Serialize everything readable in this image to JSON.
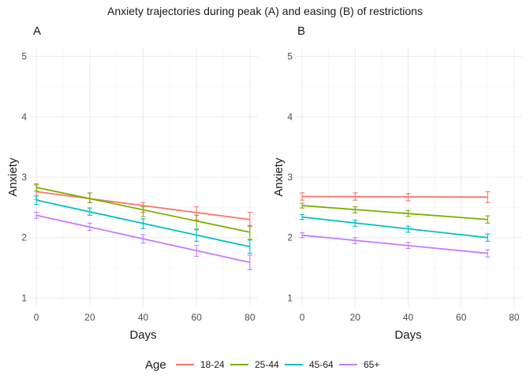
{
  "figure": {
    "title": "Anxiety trajectories during peak (A) and easing (B) of restrictions"
  },
  "legend": {
    "title": "Age",
    "position": "bottom",
    "items": [
      {
        "label": "18-24",
        "color": "#F8766D"
      },
      {
        "label": "25-44",
        "color": "#7CAE00"
      },
      {
        "label": "45-64",
        "color": "#00BFC4"
      },
      {
        "label": "65+",
        "color": "#C77CFF"
      }
    ]
  },
  "chart_data": [
    {
      "type": "line",
      "panel_label": "A",
      "xlabel": "Days",
      "ylabel": "Anxiety",
      "xlim": [
        -3,
        83
      ],
      "ylim": [
        0.85,
        5.15
      ],
      "x_ticks": [
        0,
        20,
        40,
        60,
        80
      ],
      "y_ticks": [
        1,
        2,
        3,
        4,
        5
      ],
      "grid": true,
      "series": [
        {
          "name": "18-24",
          "color": "#F8766D",
          "line": {
            "x": [
              0,
              80
            ],
            "y": [
              2.76,
              2.3
            ]
          },
          "points": [
            {
              "x": 0,
              "y": 2.75,
              "lo": 2.63,
              "hi": 2.87
            },
            {
              "x": 20,
              "y": 2.66,
              "lo": 2.58,
              "hi": 2.74
            },
            {
              "x": 40,
              "y": 2.5,
              "lo": 2.42,
              "hi": 2.58
            },
            {
              "x": 60,
              "y": 2.4,
              "lo": 2.29,
              "hi": 2.51
            },
            {
              "x": 80,
              "y": 2.3,
              "lo": 2.18,
              "hi": 2.42
            }
          ]
        },
        {
          "name": "25-44",
          "color": "#7CAE00",
          "line": {
            "x": [
              0,
              80
            ],
            "y": [
              2.83,
              2.09
            ]
          },
          "points": [
            {
              "x": 0,
              "y": 2.83,
              "lo": 2.77,
              "hi": 2.89
            },
            {
              "x": 20,
              "y": 2.66,
              "lo": 2.58,
              "hi": 2.74
            },
            {
              "x": 40,
              "y": 2.43,
              "lo": 2.35,
              "hi": 2.51
            },
            {
              "x": 60,
              "y": 2.25,
              "lo": 2.13,
              "hi": 2.37
            },
            {
              "x": 80,
              "y": 2.09,
              "lo": 1.97,
              "hi": 2.2
            }
          ]
        },
        {
          "name": "45-64",
          "color": "#00BFC4",
          "line": {
            "x": [
              0,
              80
            ],
            "y": [
              2.62,
              1.85
            ]
          },
          "points": [
            {
              "x": 0,
              "y": 2.62,
              "lo": 2.55,
              "hi": 2.69
            },
            {
              "x": 20,
              "y": 2.43,
              "lo": 2.37,
              "hi": 2.49
            },
            {
              "x": 40,
              "y": 2.23,
              "lo": 2.15,
              "hi": 2.31
            },
            {
              "x": 60,
              "y": 2.04,
              "lo": 1.94,
              "hi": 2.14
            },
            {
              "x": 80,
              "y": 1.85,
              "lo": 1.74,
              "hi": 1.96
            }
          ]
        },
        {
          "name": "65+",
          "color": "#C77CFF",
          "line": {
            "x": [
              0,
              80
            ],
            "y": [
              2.37,
              1.59
            ]
          },
          "points": [
            {
              "x": 0,
              "y": 2.37,
              "lo": 2.32,
              "hi": 2.42
            },
            {
              "x": 20,
              "y": 2.18,
              "lo": 2.12,
              "hi": 2.24
            },
            {
              "x": 40,
              "y": 1.98,
              "lo": 1.91,
              "hi": 2.05
            },
            {
              "x": 60,
              "y": 1.78,
              "lo": 1.69,
              "hi": 1.87
            },
            {
              "x": 80,
              "y": 1.59,
              "lo": 1.47,
              "hi": 1.71
            }
          ]
        }
      ]
    },
    {
      "type": "line",
      "panel_label": "B",
      "xlabel": "Days",
      "ylabel": "Anxiety",
      "xlim": [
        -3,
        83
      ],
      "ylim": [
        0.85,
        5.15
      ],
      "x_ticks": [
        0,
        20,
        40,
        60,
        80
      ],
      "y_ticks": [
        1,
        2,
        3,
        4,
        5
      ],
      "grid": true,
      "series": [
        {
          "name": "18-24",
          "color": "#F8766D",
          "line": {
            "x": [
              0,
              70
            ],
            "y": [
              2.68,
              2.67
            ]
          },
          "points": [
            {
              "x": 0,
              "y": 2.68,
              "lo": 2.62,
              "hi": 2.74
            },
            {
              "x": 20,
              "y": 2.68,
              "lo": 2.62,
              "hi": 2.74
            },
            {
              "x": 40,
              "y": 2.67,
              "lo": 2.61,
              "hi": 2.73
            },
            {
              "x": 70,
              "y": 2.67,
              "lo": 2.58,
              "hi": 2.76
            }
          ]
        },
        {
          "name": "25-44",
          "color": "#7CAE00",
          "line": {
            "x": [
              0,
              70
            ],
            "y": [
              2.53,
              2.3
            ]
          },
          "points": [
            {
              "x": 0,
              "y": 2.53,
              "lo": 2.49,
              "hi": 2.57
            },
            {
              "x": 20,
              "y": 2.46,
              "lo": 2.41,
              "hi": 2.51
            },
            {
              "x": 40,
              "y": 2.4,
              "lo": 2.35,
              "hi": 2.45
            },
            {
              "x": 70,
              "y": 2.3,
              "lo": 2.24,
              "hi": 2.36
            }
          ]
        },
        {
          "name": "45-64",
          "color": "#00BFC4",
          "line": {
            "x": [
              0,
              70
            ],
            "y": [
              2.34,
              2.0
            ]
          },
          "points": [
            {
              "x": 0,
              "y": 2.34,
              "lo": 2.3,
              "hi": 2.38
            },
            {
              "x": 20,
              "y": 2.24,
              "lo": 2.19,
              "hi": 2.29
            },
            {
              "x": 40,
              "y": 2.14,
              "lo": 2.09,
              "hi": 2.19
            },
            {
              "x": 70,
              "y": 2.0,
              "lo": 1.94,
              "hi": 2.06
            }
          ]
        },
        {
          "name": "65+",
          "color": "#C77CFF",
          "line": {
            "x": [
              0,
              70
            ],
            "y": [
              2.04,
              1.74
            ]
          },
          "points": [
            {
              "x": 0,
              "y": 2.04,
              "lo": 2.0,
              "hi": 2.08
            },
            {
              "x": 20,
              "y": 1.95,
              "lo": 1.9,
              "hi": 2.0
            },
            {
              "x": 40,
              "y": 1.87,
              "lo": 1.82,
              "hi": 1.92
            },
            {
              "x": 70,
              "y": 1.74,
              "lo": 1.68,
              "hi": 1.8
            }
          ]
        }
      ]
    }
  ]
}
